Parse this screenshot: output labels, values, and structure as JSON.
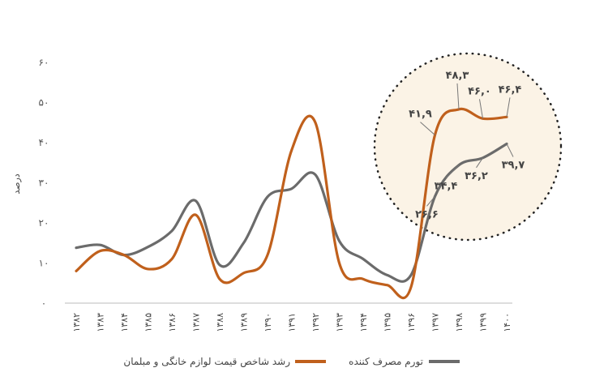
{
  "chart_data": {
    "type": "line",
    "title": "",
    "ylabel": "درصد",
    "xlabel": "",
    "ylim": [
      0,
      60
    ],
    "yticks": [
      {
        "value": 0,
        "label": "۰"
      },
      {
        "value": 10,
        "label": "۱۰"
      },
      {
        "value": 20,
        "label": "۲۰"
      },
      {
        "value": 30,
        "label": "۳۰"
      },
      {
        "value": 40,
        "label": "۴۰"
      },
      {
        "value": 50,
        "label": "۵۰"
      },
      {
        "value": 60,
        "label": "۶۰"
      }
    ],
    "categories": [
      "۱۳۸۲",
      "۱۳۸۳",
      "۱۳۸۴",
      "۱۳۸۵",
      "۱۳۸۶",
      "۱۳۸۷",
      "۱۳۸۸",
      "۱۳۸۹",
      "۱۳۹۰",
      "۱۳۹۱",
      "۱۳۹۲",
      "۱۳۹۳",
      "۱۳۹۴",
      "۱۳۹۵",
      "۱۳۹۶",
      "۱۳۹۷",
      "۱۳۹۸",
      "۱۳۹۹",
      "۱۴۰۰"
    ],
    "series": [
      {
        "name": "رشد شاخص قیمت لوازم خانگی و مبلمان",
        "color": "#c0601c",
        "values": [
          8,
          13,
          12,
          8.5,
          11,
          22,
          6,
          7.5,
          12,
          38,
          45,
          10,
          6,
          4.5,
          4,
          41.9,
          48.3,
          46.0,
          46.4
        ]
      },
      {
        "name": "تورم مصرف کننده",
        "color": "#6b6b6b",
        "values": [
          13.8,
          14.5,
          12,
          14,
          18,
          25.5,
          9.5,
          15,
          26.5,
          28.5,
          32,
          15.5,
          11,
          7,
          7,
          26.6,
          34.4,
          36.2,
          39.7
        ]
      }
    ],
    "annotations": [
      {
        "series": 0,
        "index": 15,
        "label": "۴۱,۹"
      },
      {
        "series": 0,
        "index": 16,
        "label": "۴۸,۳"
      },
      {
        "series": 0,
        "index": 17,
        "label": "۴۶,۰"
      },
      {
        "series": 0,
        "index": 18,
        "label": "۴۶,۴"
      },
      {
        "series": 1,
        "index": 15,
        "label": "۲۶,۶"
      },
      {
        "series": 1,
        "index": 16,
        "label": "۳۴,۴"
      },
      {
        "series": 1,
        "index": 17,
        "label": "۳۶,۲"
      },
      {
        "series": 1,
        "index": 18,
        "label": "۳۹,۷"
      }
    ],
    "highlight": {
      "shape": "dotted-circle",
      "fill": "#fbf3e6",
      "from_index": 15,
      "to_index": 18
    },
    "legend_position": "bottom"
  }
}
